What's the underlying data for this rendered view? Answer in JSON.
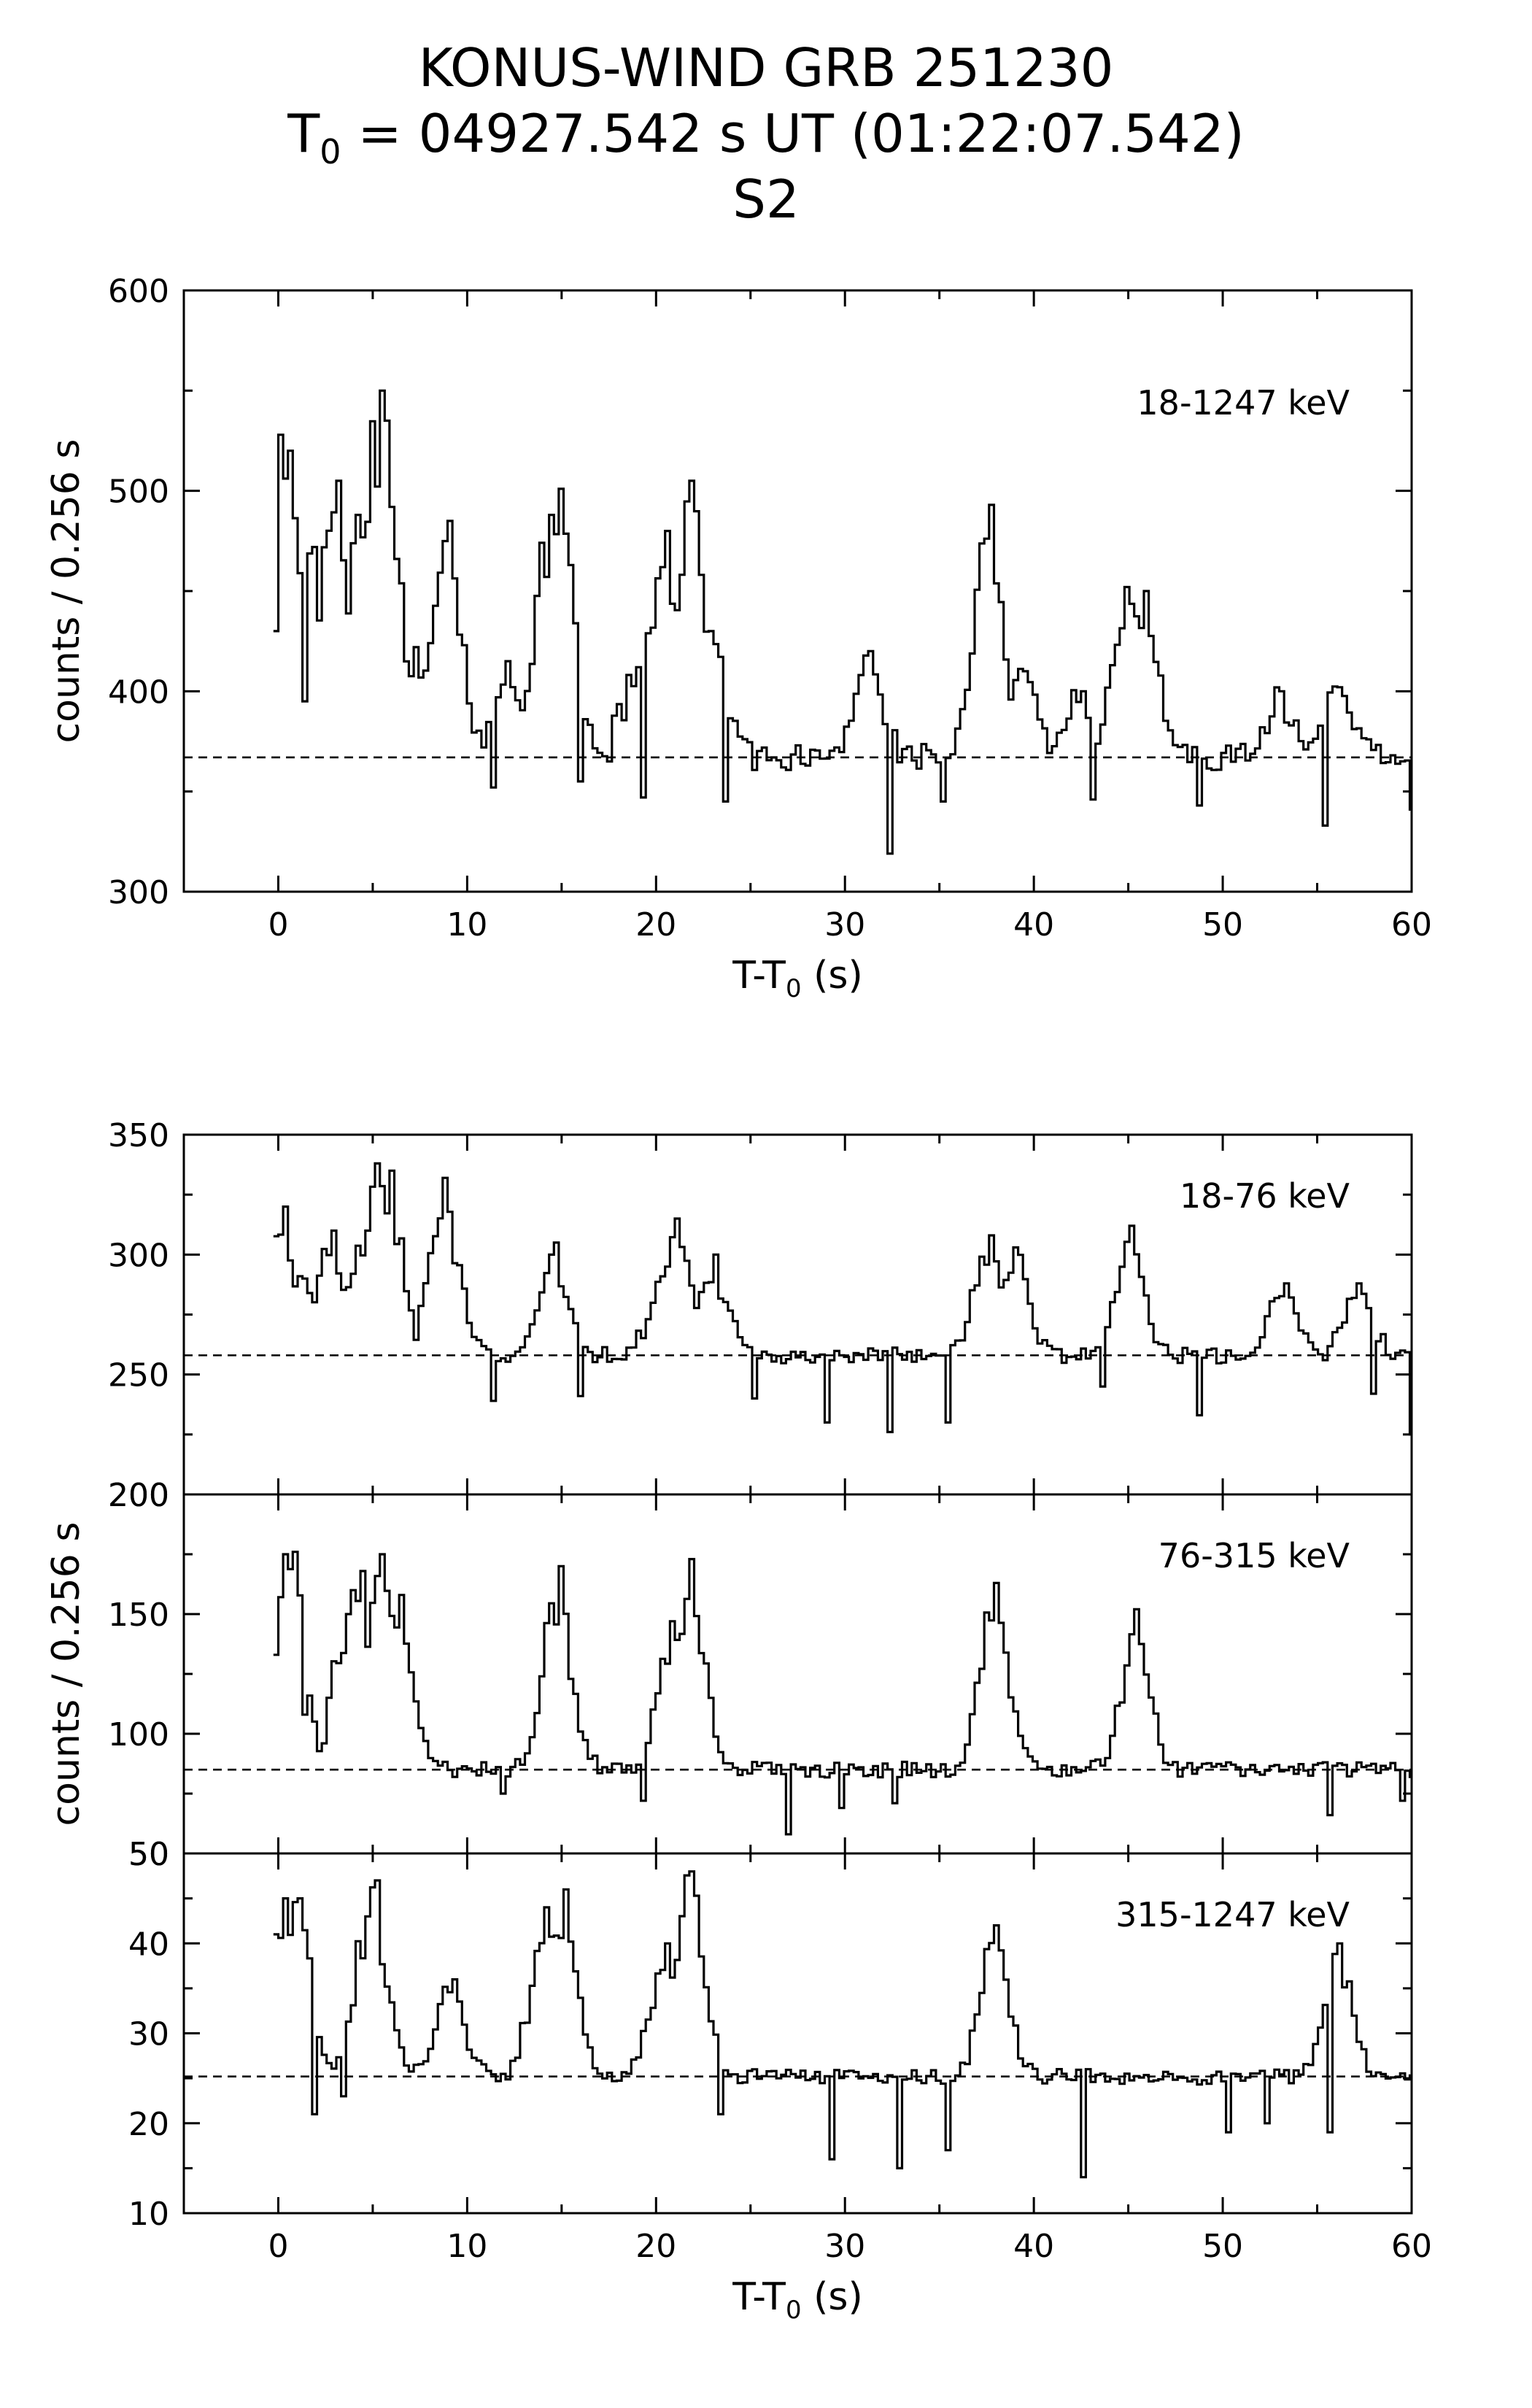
{
  "figure": {
    "title_line1": "KONUS-WIND GRB 251230",
    "title_line2_prefix": "T",
    "title_line2_sub": "0",
    "title_line2_rest": " = 04927.542 s UT (01:22:07.542)",
    "title_line3": "S2"
  },
  "chart_data": [
    {
      "type": "line",
      "subtype": "step-histogram",
      "panel": "top",
      "band": "18-1247 keV",
      "xlabel": "T-T0 (s)",
      "ylabel": "counts / 0.256 s",
      "xlim": [
        -5,
        60
      ],
      "ylim": [
        300,
        600
      ],
      "xticks": [
        0,
        10,
        20,
        30,
        40,
        50,
        60
      ],
      "yticks": [
        300,
        400,
        500,
        600
      ],
      "background": 367,
      "peaks": [
        [
          -0.3,
          430
        ],
        [
          0.1,
          528
        ],
        [
          0.5,
          520
        ],
        [
          1.3,
          395
        ],
        [
          1.8,
          472
        ],
        [
          3.0,
          505
        ],
        [
          4.2,
          488
        ],
        [
          5.3,
          550
        ],
        [
          5.7,
          535
        ],
        [
          7.2,
          422
        ],
        [
          8.9,
          485
        ],
        [
          12.0,
          415
        ],
        [
          14.4,
          488
        ],
        [
          14.9,
          501
        ],
        [
          17.5,
          365
        ],
        [
          18.9,
          412
        ],
        [
          20.4,
          480
        ],
        [
          21.8,
          505
        ],
        [
          22.9,
          430
        ],
        [
          31.2,
          420
        ],
        [
          37.6,
          493
        ],
        [
          39.5,
          410
        ],
        [
          42.4,
          400
        ],
        [
          44.9,
          452
        ],
        [
          45.8,
          450
        ],
        [
          53.1,
          400
        ],
        [
          56.1,
          402
        ]
      ],
      "dips": [
        [
          11.3,
          352
        ],
        [
          15.9,
          355
        ],
        [
          19.2,
          347
        ],
        [
          23.6,
          345
        ],
        [
          32.3,
          319
        ],
        [
          35.1,
          345
        ],
        [
          43.1,
          346
        ],
        [
          48.6,
          343
        ],
        [
          55.4,
          333
        ],
        [
          59.9,
          341
        ]
      ],
      "seed": 11
    },
    {
      "type": "line",
      "subtype": "step-histogram",
      "panel": "lower-1",
      "band": "18-76 keV",
      "xlabel": "",
      "ylabel": "counts / 0.256 s",
      "xlim": [
        -5,
        60
      ],
      "ylim": [
        200,
        350
      ],
      "xticks": [
        0,
        10,
        20,
        30,
        40,
        50,
        60
      ],
      "yticks": [
        200,
        250,
        300,
        350
      ],
      "background": 258,
      "peaks": [
        [
          0.2,
          320
        ],
        [
          1.2,
          290
        ],
        [
          2.8,
          310
        ],
        [
          4.5,
          310
        ],
        [
          5.2,
          338
        ],
        [
          5.8,
          335
        ],
        [
          8.8,
          332
        ],
        [
          14.5,
          305
        ],
        [
          20.4,
          295
        ],
        [
          21.1,
          315
        ],
        [
          23.0,
          300
        ],
        [
          37.6,
          308
        ],
        [
          39.0,
          303
        ],
        [
          45.1,
          312
        ],
        [
          53.2,
          288
        ],
        [
          57.2,
          288
        ]
      ],
      "dips": [
        [
          11.3,
          239
        ],
        [
          15.9,
          241
        ],
        [
          25.0,
          240
        ],
        [
          28.9,
          230
        ],
        [
          32.3,
          226
        ],
        [
          35.2,
          230
        ],
        [
          43.6,
          245
        ],
        [
          48.6,
          233
        ],
        [
          57.9,
          242
        ],
        [
          60.0,
          225
        ]
      ],
      "seed": 23
    },
    {
      "type": "line",
      "subtype": "step-histogram",
      "panel": "lower-2",
      "band": "76-315 keV",
      "xlabel": "",
      "ylabel": "counts / 0.256 s",
      "xlim": [
        -5,
        60
      ],
      "ylim": [
        50,
        200
      ],
      "xticks": [
        0,
        10,
        20,
        30,
        40,
        50,
        60
      ],
      "yticks": [
        50,
        100,
        150,
        200
      ],
      "background": 85,
      "peaks": [
        [
          -0.3,
          133
        ],
        [
          0.2,
          175
        ],
        [
          0.7,
          176
        ],
        [
          3.5,
          150
        ],
        [
          4.3,
          168
        ],
        [
          5.3,
          175
        ],
        [
          6.4,
          158
        ],
        [
          14.8,
          170
        ],
        [
          20.8,
          147
        ],
        [
          21.8,
          173
        ],
        [
          37.9,
          163
        ],
        [
          45.4,
          152
        ]
      ],
      "dips": [
        [
          1.3,
          108
        ],
        [
          2.2,
          96
        ],
        [
          11.8,
          75
        ],
        [
          19.2,
          72
        ],
        [
          26.8,
          58
        ],
        [
          29.8,
          69
        ],
        [
          32.6,
          71
        ],
        [
          55.6,
          66
        ],
        [
          59.5,
          72
        ]
      ],
      "seed": 37
    },
    {
      "type": "line",
      "subtype": "step-histogram",
      "panel": "lower-3",
      "band": "315-1247 keV",
      "xlabel": "T-T0 (s)",
      "ylabel": "counts / 0.256 s",
      "xlim": [
        -5,
        60
      ],
      "ylim": [
        10,
        50
      ],
      "xticks": [
        0,
        10,
        20,
        30,
        40,
        50,
        60
      ],
      "yticks": [
        10,
        20,
        30,
        40,
        50
      ],
      "background": 25.2,
      "peaks": [
        [
          -0.3,
          41
        ],
        [
          0.3,
          45
        ],
        [
          1.0,
          45
        ],
        [
          4.7,
          43
        ],
        [
          5.0,
          47
        ],
        [
          9.1,
          36
        ],
        [
          14.1,
          44
        ],
        [
          15.0,
          46
        ],
        [
          20.4,
          40
        ],
        [
          21.8,
          48
        ],
        [
          37.9,
          42
        ],
        [
          56.1,
          40
        ]
      ],
      "dips": [
        [
          1.9,
          21
        ],
        [
          3.3,
          23
        ],
        [
          23.3,
          21
        ],
        [
          29.2,
          16
        ],
        [
          32.7,
          15
        ],
        [
          35.2,
          17
        ],
        [
          42.5,
          14
        ],
        [
          50.2,
          19
        ],
        [
          52.2,
          20
        ],
        [
          55.6,
          19
        ]
      ],
      "seed": 51
    }
  ]
}
